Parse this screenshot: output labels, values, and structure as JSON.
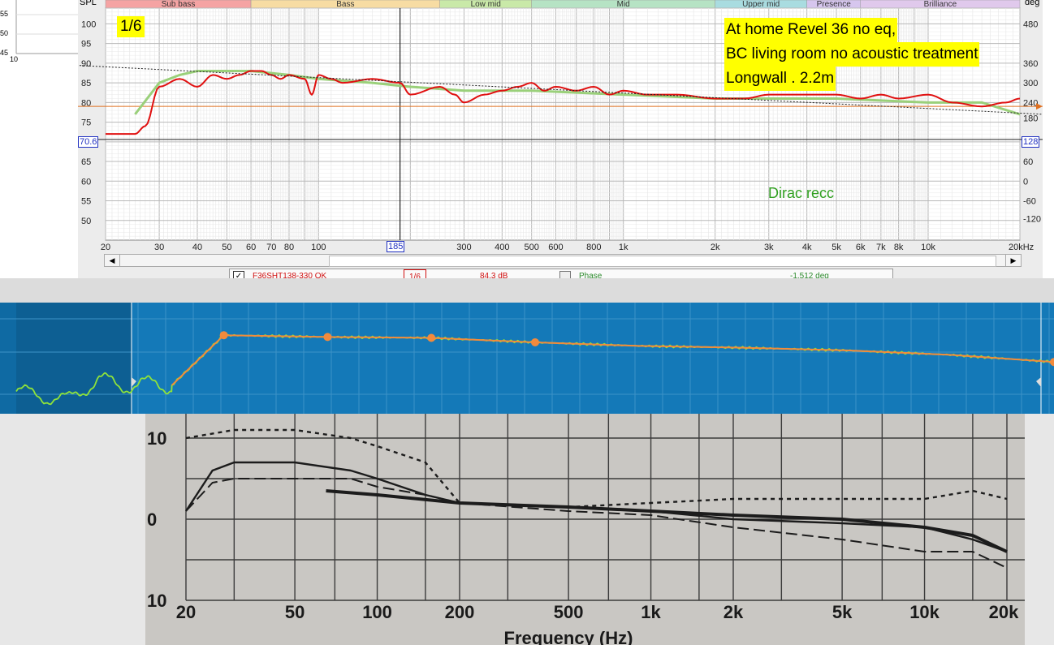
{
  "rew": {
    "spl_label": "SPL",
    "deg_label": "deg",
    "bands": [
      "Sub bass",
      "Bass",
      "Low mid",
      "Mid",
      "Upper mid",
      "Presence",
      "Brilliance"
    ],
    "smoothing_label": "1/6",
    "annotation_lines": [
      "At home Revel 36 no eq,",
      "BC living room no acoustic treatment",
      "Longwall . 2.2m"
    ],
    "target_label": "Dirac  recc",
    "cursor_spl": "70.6",
    "cursor_deg": "128",
    "cursor_freq": "185",
    "y_ticks": [
      "100",
      "95",
      "90",
      "85",
      "80",
      "75",
      "65",
      "60",
      "55",
      "50"
    ],
    "deg_ticks": [
      "480",
      "360",
      "300",
      "240",
      "180",
      "60",
      "0",
      "-60",
      "-120"
    ],
    "x_ticks": [
      "20",
      "30",
      "40",
      "50",
      "60",
      "70",
      "80",
      "100",
      "300",
      "400",
      "500",
      "600",
      "800",
      "1k",
      "2k",
      "3k",
      "4k",
      "5k",
      "6k",
      "7k",
      "8k",
      "10k",
      "20kHz"
    ],
    "left_ticks": [
      "55",
      "50",
      "45",
      "10"
    ],
    "legend": {
      "name": "F36SHT138-330 OK",
      "smoothing": "1/6",
      "spl": "84.3 dB",
      "phase_label": "Phase",
      "phase": "-1.512 deg"
    },
    "colors": {
      "measured": "#e01010",
      "target": "#9ad07a",
      "marker": "#e07020",
      "dotted": "#222222"
    }
  },
  "chart_data": [
    {
      "type": "line",
      "xscale": "log",
      "xlim": [
        20,
        20000
      ],
      "ylim": [
        45,
        100
      ],
      "ylabel": "SPL",
      "series": [
        {
          "x": [
            20,
            25,
            27,
            30,
            35,
            40,
            45,
            50,
            55,
            60,
            65,
            70,
            75,
            80,
            90,
            95,
            100,
            110,
            120,
            150,
            185,
            200,
            250,
            280,
            300,
            350,
            400,
            450,
            500,
            550,
            600,
            700,
            800,
            900,
            1000,
            1200,
            1500,
            2000,
            2500,
            3000,
            4000,
            5000,
            6000,
            7000,
            8000,
            10000,
            12000,
            15000,
            18000,
            20000
          ],
          "values": [
            72,
            72,
            74,
            84,
            86,
            84,
            87,
            86,
            87,
            88,
            88,
            87,
            86,
            87,
            86,
            82,
            87,
            86,
            85,
            86,
            85,
            82,
            84,
            82,
            80,
            82,
            83,
            84,
            85,
            83,
            84,
            83,
            84,
            82,
            83,
            82,
            82,
            81,
            81,
            82,
            82,
            82,
            81,
            82,
            81,
            82,
            80,
            79,
            80,
            81
          ]
        },
        {
          "x": [
            25,
            30,
            35,
            40,
            50,
            60,
            80,
            100,
            150,
            200,
            300,
            500,
            1000,
            2000,
            5000,
            10000,
            15000,
            20000
          ],
          "values": [
            77,
            85,
            87,
            88,
            88,
            88,
            87,
            86,
            85,
            84,
            83,
            83,
            82,
            81,
            81,
            80,
            80,
            77
          ]
        },
        {
          "x": [
            10,
            20000
          ],
          "values": [
            90,
            77
          ]
        }
      ],
      "reference_line": 79
    },
    {
      "type": "line",
      "series": [
        {
          "x": [
            0.0,
            0.05,
            0.08,
            0.1,
            0.12,
            0.14,
            0.15,
            0.2,
            0.3,
            0.4,
            0.5,
            0.6,
            0.7,
            0.8,
            0.9,
            1.0
          ],
          "values": [
            0.25,
            0.15,
            0.4,
            0.3,
            0.35,
            0.3,
            0.32,
            0.88,
            0.86,
            0.85,
            0.8,
            0.76,
            0.74,
            0.71,
            0.66,
            0.58
          ]
        }
      ]
    },
    {
      "type": "line",
      "xscale": "log",
      "xlim": [
        20,
        20000
      ],
      "ylim": [
        -10,
        10
      ],
      "x_ticks": [
        "20",
        "50",
        "100",
        "200",
        "500",
        "1k",
        "2k",
        "5k",
        "10k",
        "20k"
      ],
      "y_ticks": [
        "10",
        "0",
        "10"
      ],
      "xlabel": "Frequency (Hz)",
      "series": [
        {
          "x": [
            20,
            25,
            30,
            50,
            80,
            100,
            150,
            200,
            500,
            1000,
            2000,
            5000,
            10000,
            15000,
            20000
          ],
          "values": [
            1,
            6,
            7,
            7,
            6,
            5,
            3,
            2,
            1.5,
            1,
            0,
            -0.5,
            -1,
            -2.5,
            -4
          ]
        },
        {
          "x": [
            20,
            25,
            30,
            50,
            80,
            100,
            150,
            200,
            500,
            1000,
            2000,
            5000,
            10000,
            15000,
            20000
          ],
          "values": [
            1,
            4.5,
            5,
            5,
            5,
            4,
            3,
            2,
            1,
            0.5,
            -1,
            -2.5,
            -4,
            -4,
            -6
          ]
        },
        {
          "x": [
            20,
            30,
            50,
            80,
            100,
            150,
            200,
            500,
            1000,
            2000,
            5000,
            10000,
            15000,
            20000
          ],
          "values": [
            10,
            11,
            11,
            10,
            9,
            7,
            2,
            1.5,
            2,
            2.5,
            2.5,
            2.5,
            3.5,
            2.5
          ]
        },
        {
          "x": [
            65,
            100,
            200,
            500,
            1000,
            2000,
            5000,
            10000,
            15000,
            20000
          ],
          "values": [
            3.5,
            3,
            2,
            1.5,
            1,
            0.5,
            0,
            -1,
            -2,
            -4
          ]
        }
      ]
    }
  ]
}
